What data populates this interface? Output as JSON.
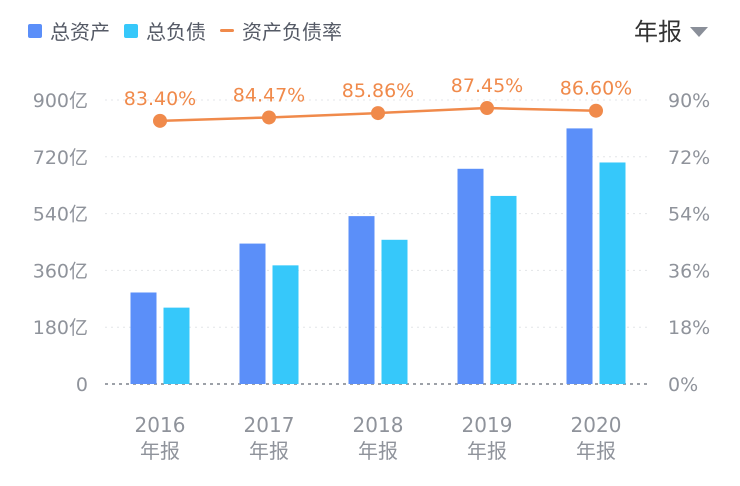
{
  "legend": {
    "total_assets": "总资产",
    "total_liabilities": "总负债",
    "debt_ratio": "资产负债率"
  },
  "period_selector": "年报",
  "colors": {
    "total_assets": "#5b8ff9",
    "total_liabilities": "#36c8fa",
    "debt_ratio": "#f08a4b",
    "axis_text": "#8f939b"
  },
  "chart_data": {
    "type": "bar",
    "categories": [
      "2016\n年报",
      "2017\n年报",
      "2018\n年报",
      "2019\n年报",
      "2020\n年报"
    ],
    "category_years": [
      "2016",
      "2017",
      "2018",
      "2019",
      "2020"
    ],
    "category_suffix": "年报",
    "series": [
      {
        "name": "总资产",
        "type": "bar",
        "axis": "left",
        "values": [
          290,
          445,
          532,
          682,
          810
        ]
      },
      {
        "name": "总负债",
        "type": "bar",
        "axis": "left",
        "values": [
          242,
          376,
          457,
          596,
          702
        ]
      },
      {
        "name": "资产负债率",
        "type": "line",
        "axis": "right",
        "values": [
          83.4,
          84.47,
          85.86,
          87.45,
          86.6
        ],
        "labels": [
          "83.40%",
          "84.47%",
          "85.86%",
          "87.45%",
          "86.60%"
        ]
      }
    ],
    "y_left": {
      "ticks": [
        "0",
        "180亿",
        "360亿",
        "540亿",
        "720亿",
        "900亿"
      ],
      "tick_values": [
        0,
        180,
        360,
        540,
        720,
        900
      ],
      "lim": [
        0,
        900
      ]
    },
    "y_right": {
      "ticks": [
        "0%",
        "18%",
        "36%",
        "54%",
        "72%",
        "90%"
      ],
      "tick_values": [
        0,
        18,
        36,
        54,
        72,
        90
      ],
      "lim": [
        0,
        90
      ]
    },
    "grid": true,
    "legend_position": "top-left"
  }
}
